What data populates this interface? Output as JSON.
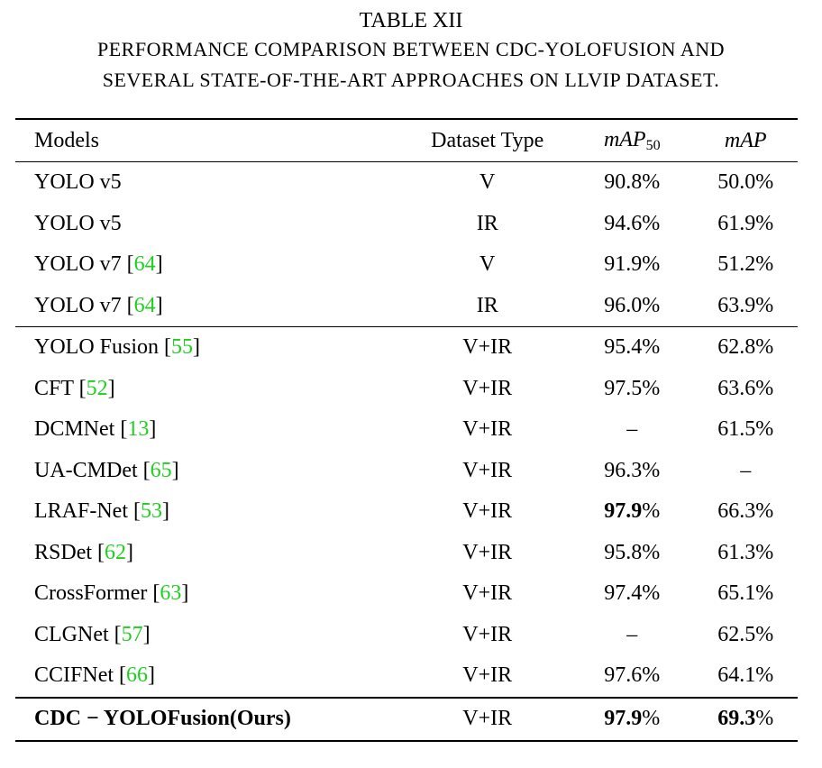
{
  "caption": {
    "table_number": "TABLE XII",
    "line1": "PERFORMANCE COMPARISON BETWEEN CDC-YOLOFUSION AND",
    "line2": "SEVERAL STATE-OF-THE-ART APPROACHES ON LLVIP DATASET."
  },
  "headers": {
    "models": "Models",
    "dataset_type": "Dataset Type",
    "map50_main": "mAP",
    "map50_sub": "50",
    "map": "mAP"
  },
  "colors": {
    "reference_link": "#1fcf1f"
  },
  "rows": [
    {
      "model": "YOLO v5",
      "ref": "",
      "type": "V",
      "map50": "90.8%",
      "map": "50.0%"
    },
    {
      "model": "YOLO v5",
      "ref": "",
      "type": "IR",
      "map50": "94.6%",
      "map": "61.9%"
    },
    {
      "model": "YOLO v7",
      "ref": "64",
      "type": "V",
      "map50": "91.9%",
      "map": "51.2%"
    },
    {
      "model": "YOLO v7",
      "ref": "64",
      "type": "IR",
      "map50": "96.0%",
      "map": "63.9%"
    },
    {
      "model": "YOLO Fusion",
      "ref": "55",
      "type": "V+IR",
      "map50": "95.4%",
      "map": "62.8%"
    },
    {
      "model": "CFT",
      "ref": "52",
      "type": "V+IR",
      "map50": "97.5%",
      "map": "63.6%"
    },
    {
      "model": "DCMNet",
      "ref": "13",
      "type": "V+IR",
      "map50": "–",
      "map": "61.5%"
    },
    {
      "model": "UA-CMDet",
      "ref": "65",
      "type": "V+IR",
      "map50": "96.3%",
      "map": "–"
    },
    {
      "model": "LRAF-Net",
      "ref": "53",
      "type": "V+IR",
      "map50_bold": "97.9",
      "map50_rest": "%",
      "map": "66.3%"
    },
    {
      "model": "RSDet",
      "ref": "62",
      "type": "V+IR",
      "map50": "95.8%",
      "map": "61.3%"
    },
    {
      "model": "CrossFormer",
      "ref": "63",
      "type": "V+IR",
      "map50": "97.4%",
      "map": "65.1%"
    },
    {
      "model": "CLGNet",
      "ref": "57",
      "type": "V+IR",
      "map50": "–",
      "map": "62.5%"
    },
    {
      "model": "CCIFNet",
      "ref": "66",
      "type": "V+IR",
      "map50": "97.6%",
      "map": "64.1%"
    }
  ],
  "ours": {
    "model": "CDC − YOLOFusion(Ours)",
    "type": "V+IR",
    "map50_bold": "97.9",
    "map50_rest": "%",
    "map_bold": "69.3",
    "map_rest": "%"
  }
}
